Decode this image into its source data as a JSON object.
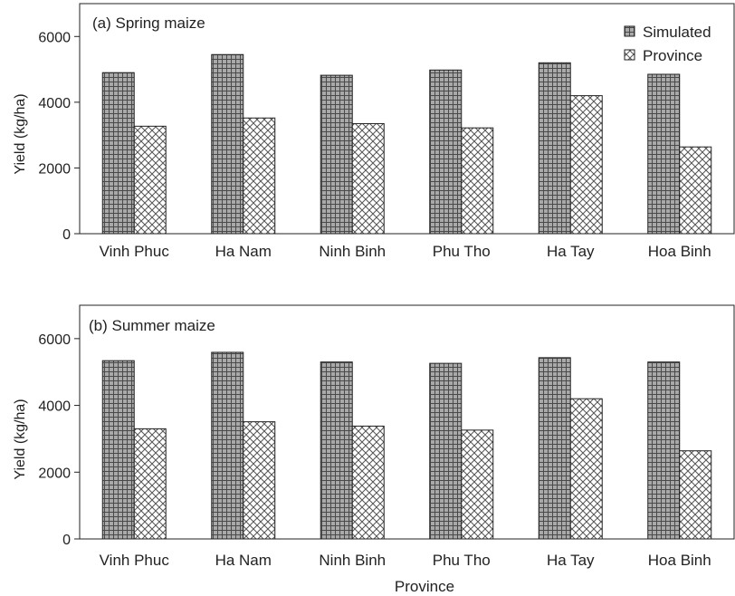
{
  "figure": {
    "xlabel": "Province"
  },
  "chart_data": [
    {
      "type": "bar",
      "title": "(a) Spring maize",
      "ylabel": "Yield (kg/ha)",
      "ylim": [
        0,
        7000
      ],
      "yticks": [
        0,
        2000,
        4000,
        6000
      ],
      "categories": [
        "Vinh Phuc",
        "Ha Nam",
        "Ninh Binh",
        "Phu Tho",
        "Ha Tay",
        "Hoa Binh"
      ],
      "series": [
        {
          "name": "Simulated",
          "values": [
            4900,
            5450,
            4820,
            4980,
            5200,
            4850
          ]
        },
        {
          "name": "Province",
          "values": [
            3270,
            3520,
            3350,
            3220,
            4200,
            2640
          ]
        }
      ],
      "legend": "top-right"
    },
    {
      "type": "bar",
      "title": "(b) Summer maize",
      "ylabel": "Yield (kg/ha)",
      "ylim": [
        0,
        7000
      ],
      "yticks": [
        0,
        2000,
        4000,
        6000
      ],
      "categories": [
        "Vinh Phuc",
        "Ha Nam",
        "Ninh Binh",
        "Phu Tho",
        "Ha Tay",
        "Hoa Binh"
      ],
      "series": [
        {
          "name": "Simulated",
          "values": [
            5340,
            5590,
            5300,
            5260,
            5430,
            5300
          ]
        },
        {
          "name": "Province",
          "values": [
            3300,
            3510,
            3380,
            3260,
            4200,
            2640
          ]
        }
      ]
    }
  ]
}
